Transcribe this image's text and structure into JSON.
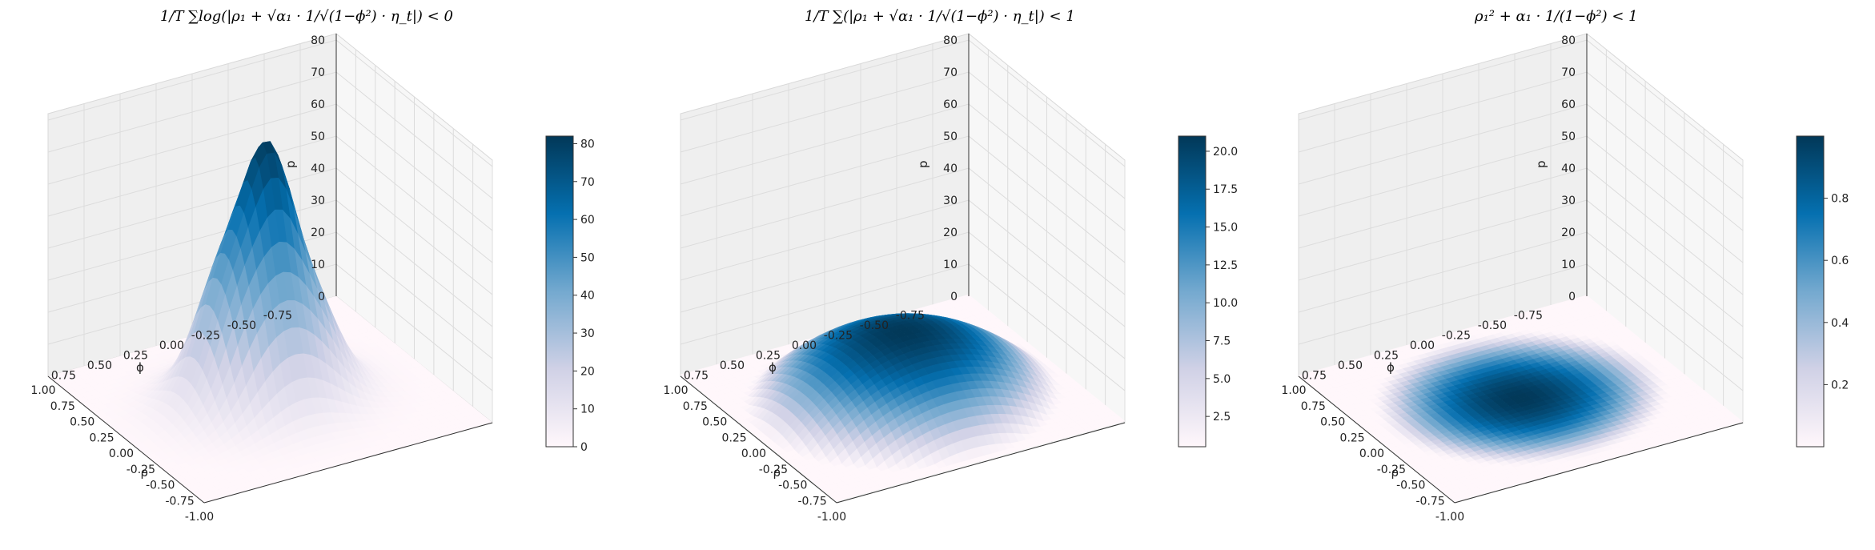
{
  "chart_data": [
    {
      "type": "surface3d",
      "title": "1/T ∑log(|ρ₁ + √α₁ · 1/√(1−ϕ²) · η_t|) < 0",
      "xlabel": "ρ",
      "ylabel": "ϕ",
      "zlabel": "p",
      "x_ticks": [
        "-1.00",
        "-0.75",
        "-0.50",
        "-0.25",
        "0.00",
        "0.25",
        "0.50",
        "0.75",
        "1.00"
      ],
      "y_ticks": [
        "-0.75",
        "-0.50",
        "-0.25",
        "0.00",
        "0.25",
        "0.50",
        "0.75"
      ],
      "z_ticks": [
        "0",
        "10",
        "20",
        "30",
        "40",
        "50",
        "60",
        "70",
        "80"
      ],
      "zlim": [
        0,
        82
      ],
      "peak": 78,
      "colorbar_ticks": [
        "0",
        "10",
        "20",
        "30",
        "40",
        "50",
        "60",
        "70",
        "80"
      ],
      "colorbar_range": [
        0,
        82
      ],
      "colormap": [
        "#fff7fb",
        "#d0d1e6",
        "#74a9cf",
        "#0570b0",
        "#023858"
      ],
      "shape": "narrow-peak"
    },
    {
      "type": "surface3d",
      "title": "1/T ∑(|ρ₁ + √α₁ · 1/√(1−ϕ²) · η_t|) < 1",
      "xlabel": "ρ",
      "ylabel": "ϕ",
      "zlabel": "p",
      "x_ticks": [
        "-1.00",
        "-0.75",
        "-0.50",
        "-0.25",
        "0.00",
        "0.25",
        "0.50",
        "0.75",
        "1.00"
      ],
      "y_ticks": [
        "-0.75",
        "-0.50",
        "-0.25",
        "0.00",
        "0.25",
        "0.50",
        "0.75"
      ],
      "z_ticks": [
        "0",
        "10",
        "20",
        "30",
        "40",
        "50",
        "60",
        "70",
        "80"
      ],
      "zlim": [
        0,
        82
      ],
      "peak": 21,
      "colorbar_ticks": [
        "2.5",
        "5.0",
        "7.5",
        "10.0",
        "12.5",
        "15.0",
        "17.5",
        "20.0"
      ],
      "colorbar_range": [
        0.5,
        21
      ],
      "colormap": [
        "#fff7fb",
        "#d0d1e6",
        "#74a9cf",
        "#0570b0",
        "#023858"
      ],
      "shape": "dome"
    },
    {
      "type": "surface3d",
      "title": "ρ₁² + α₁ · 1/(1−ϕ²) < 1",
      "xlabel": "ρ",
      "ylabel": "ϕ",
      "zlabel": "p",
      "x_ticks": [
        "-1.00",
        "-0.75",
        "-0.50",
        "-0.25",
        "0.00",
        "0.25",
        "0.50",
        "0.75",
        "1.00"
      ],
      "y_ticks": [
        "-0.75",
        "-0.50",
        "-0.25",
        "0.00",
        "0.25",
        "0.50",
        "0.75"
      ],
      "z_ticks": [
        "0",
        "10",
        "20",
        "30",
        "40",
        "50",
        "60",
        "70",
        "80"
      ],
      "zlim": [
        0,
        82
      ],
      "peak": 1,
      "colorbar_ticks": [
        "0.2",
        "0.4",
        "0.6",
        "0.8"
      ],
      "colorbar_range": [
        0,
        1
      ],
      "colormap": [
        "#fff7fb",
        "#d0d1e6",
        "#74a9cf",
        "#0570b0",
        "#023858"
      ],
      "shape": "flat-disc"
    }
  ]
}
